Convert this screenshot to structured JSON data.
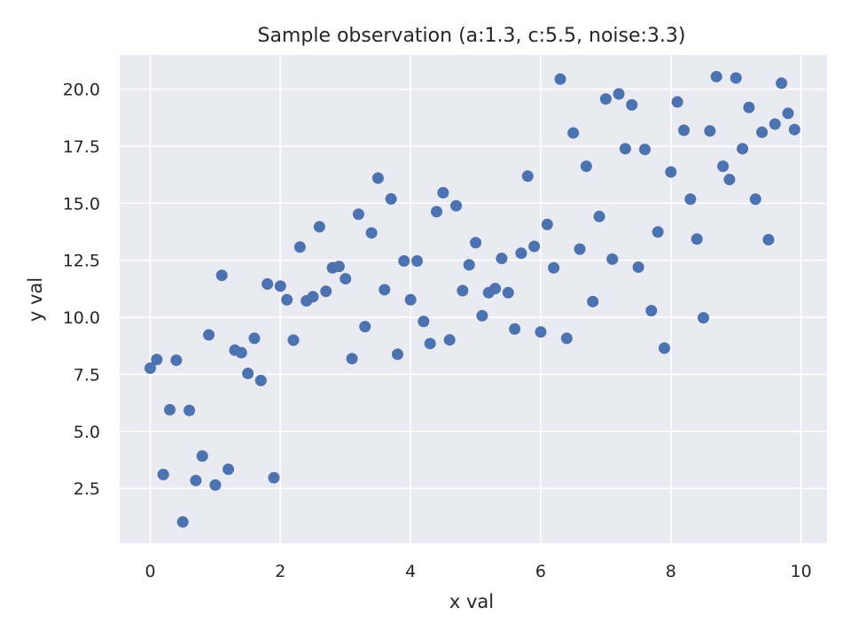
{
  "chart_data": {
    "type": "scatter",
    "title": "Sample observation (a:1.3, c:5.5, noise:3.3)",
    "xlabel": "x val",
    "ylabel": "y val",
    "xlim": [
      -0.47,
      10.4
    ],
    "ylim": [
      0.1,
      21.5
    ],
    "x_ticks": [
      0,
      2,
      4,
      6,
      8,
      10
    ],
    "y_ticks": [
      2.5,
      5.0,
      7.5,
      10.0,
      12.5,
      15.0,
      17.5,
      20.0
    ],
    "x_tick_labels": [
      "0",
      "2",
      "4",
      "6",
      "8",
      "10"
    ],
    "y_tick_labels": [
      "2.5",
      "5.0",
      "7.5",
      "10.0",
      "12.5",
      "15.0",
      "17.5",
      "20.0"
    ],
    "grid": true,
    "style": {
      "background": "#eaeaf2",
      "point_color": "#4c72b0"
    },
    "points": [
      [
        0.0,
        7.77
      ],
      [
        0.1,
        8.15
      ],
      [
        0.2,
        3.11
      ],
      [
        0.3,
        5.95
      ],
      [
        0.4,
        8.12
      ],
      [
        0.5,
        1.03
      ],
      [
        0.6,
        5.92
      ],
      [
        0.7,
        2.85
      ],
      [
        0.8,
        3.92
      ],
      [
        0.9,
        9.23
      ],
      [
        1.0,
        2.65
      ],
      [
        1.1,
        11.84
      ],
      [
        1.2,
        3.34
      ],
      [
        1.3,
        8.56
      ],
      [
        1.4,
        8.45
      ],
      [
        1.5,
        7.54
      ],
      [
        1.6,
        9.08
      ],
      [
        1.7,
        7.23
      ],
      [
        1.8,
        11.46
      ],
      [
        1.9,
        2.97
      ],
      [
        2.0,
        11.37
      ],
      [
        2.1,
        10.77
      ],
      [
        2.2,
        9.0
      ],
      [
        2.3,
        13.08
      ],
      [
        2.4,
        10.72
      ],
      [
        2.5,
        10.9
      ],
      [
        2.6,
        13.97
      ],
      [
        2.7,
        11.14
      ],
      [
        2.8,
        12.17
      ],
      [
        2.9,
        12.23
      ],
      [
        3.0,
        11.69
      ],
      [
        3.1,
        8.19
      ],
      [
        3.2,
        14.52
      ],
      [
        3.3,
        9.59
      ],
      [
        3.4,
        13.7
      ],
      [
        3.5,
        16.1
      ],
      [
        3.6,
        11.21
      ],
      [
        3.7,
        15.19
      ],
      [
        3.8,
        8.38
      ],
      [
        3.9,
        12.47
      ],
      [
        4.0,
        10.77
      ],
      [
        4.1,
        12.47
      ],
      [
        4.2,
        9.82
      ],
      [
        4.3,
        8.85
      ],
      [
        4.4,
        14.63
      ],
      [
        4.5,
        15.46
      ],
      [
        4.6,
        9.01
      ],
      [
        4.7,
        14.89
      ],
      [
        4.8,
        11.17
      ],
      [
        4.9,
        12.3
      ],
      [
        5.0,
        13.27
      ],
      [
        5.1,
        10.07
      ],
      [
        5.2,
        11.08
      ],
      [
        5.3,
        11.26
      ],
      [
        5.4,
        12.58
      ],
      [
        5.5,
        11.08
      ],
      [
        5.6,
        9.49
      ],
      [
        5.7,
        12.81
      ],
      [
        5.8,
        16.19
      ],
      [
        5.9,
        13.11
      ],
      [
        6.0,
        9.36
      ],
      [
        6.1,
        14.07
      ],
      [
        6.2,
        12.17
      ],
      [
        6.3,
        20.44
      ],
      [
        6.4,
        9.08
      ],
      [
        6.5,
        18.08
      ],
      [
        6.6,
        12.99
      ],
      [
        6.7,
        16.62
      ],
      [
        6.8,
        10.69
      ],
      [
        6.9,
        14.42
      ],
      [
        7.0,
        19.57
      ],
      [
        7.1,
        12.55
      ],
      [
        7.2,
        19.79
      ],
      [
        7.3,
        17.39
      ],
      [
        7.4,
        19.31
      ],
      [
        7.5,
        12.2
      ],
      [
        7.6,
        17.36
      ],
      [
        7.7,
        10.29
      ],
      [
        7.8,
        13.74
      ],
      [
        7.9,
        8.65
      ],
      [
        8.0,
        16.37
      ],
      [
        8.1,
        19.44
      ],
      [
        8.2,
        18.2
      ],
      [
        8.3,
        15.18
      ],
      [
        8.4,
        13.43
      ],
      [
        8.5,
        9.98
      ],
      [
        8.6,
        18.17
      ],
      [
        8.7,
        20.55
      ],
      [
        8.8,
        16.62
      ],
      [
        8.9,
        16.04
      ],
      [
        9.0,
        20.49
      ],
      [
        9.1,
        17.39
      ],
      [
        9.2,
        19.2
      ],
      [
        9.3,
        15.18
      ],
      [
        9.4,
        18.11
      ],
      [
        9.5,
        13.4
      ],
      [
        9.6,
        18.47
      ],
      [
        9.7,
        20.26
      ],
      [
        9.8,
        18.94
      ],
      [
        9.9,
        18.23
      ]
    ]
  }
}
